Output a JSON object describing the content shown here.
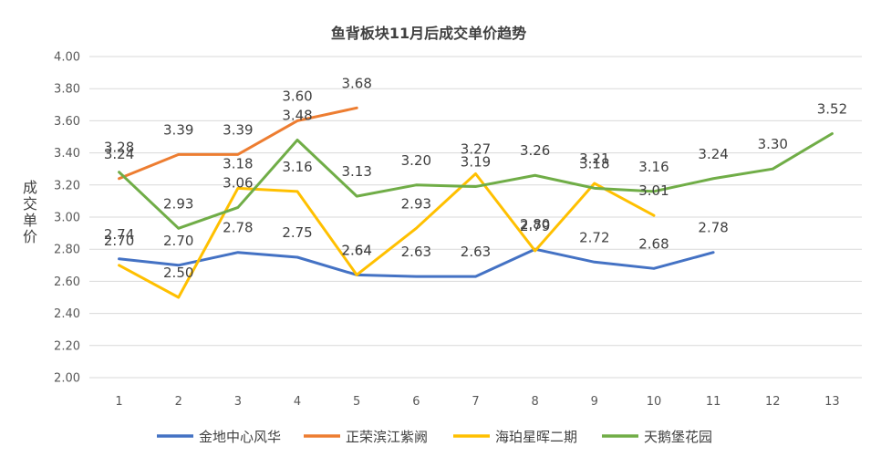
{
  "chart_data": {
    "type": "line",
    "title": "鱼背板块11月后成交单价趋势",
    "ylabel": "成交单价",
    "xlabel": "",
    "x": [
      1,
      2,
      3,
      4,
      5,
      6,
      7,
      8,
      9,
      10,
      11,
      12,
      13
    ],
    "ylim": [
      2.0,
      4.0
    ],
    "ytick_step": 0.2,
    "grid": true,
    "legend_position": "bottom",
    "series": [
      {
        "name": "金地中心风华",
        "color": "#4472C4",
        "values": [
          2.74,
          2.7,
          2.78,
          2.75,
          2.64,
          2.63,
          2.63,
          2.8,
          2.72,
          2.68,
          2.78,
          null,
          null
        ]
      },
      {
        "name": "正荣滨江紫阙",
        "color": "#ED7D31",
        "values": [
          3.24,
          3.39,
          3.39,
          3.6,
          3.68,
          null,
          null,
          null,
          null,
          null,
          null,
          null,
          null
        ]
      },
      {
        "name": "海珀星晖二期",
        "color": "#FFC000",
        "values": [
          2.7,
          2.5,
          3.18,
          3.16,
          2.64,
          2.93,
          3.27,
          2.79,
          3.21,
          3.01,
          null,
          null,
          null
        ]
      },
      {
        "name": "天鹅堡花园",
        "color": "#70AD47",
        "values": [
          3.28,
          2.93,
          3.06,
          3.48,
          3.13,
          3.2,
          3.19,
          3.26,
          3.18,
          3.16,
          3.24,
          3.3,
          3.52
        ]
      }
    ]
  }
}
